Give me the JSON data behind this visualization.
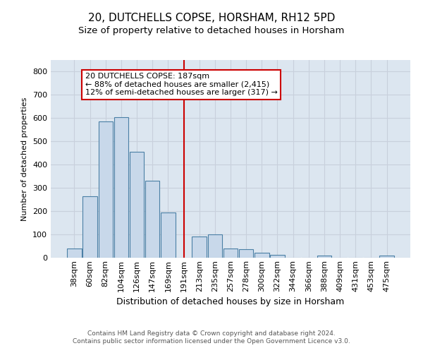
{
  "title": "20, DUTCHELLS COPSE, HORSHAM, RH12 5PD",
  "subtitle": "Size of property relative to detached houses in Horsham",
  "xlabel": "Distribution of detached houses by size in Horsham",
  "ylabel": "Number of detached properties",
  "footer_line1": "Contains HM Land Registry data © Crown copyright and database right 2024.",
  "footer_line2": "Contains public sector information licensed under the Open Government Licence v3.0.",
  "annotation_title": "20 DUTCHELLS COPSE: 187sqm",
  "annotation_line1": "← 88% of detached houses are smaller (2,415)",
  "annotation_line2": "12% of semi-detached houses are larger (317) →",
  "bar_labels": [
    "38sqm",
    "60sqm",
    "82sqm",
    "104sqm",
    "126sqm",
    "147sqm",
    "169sqm",
    "191sqm",
    "213sqm",
    "235sqm",
    "257sqm",
    "278sqm",
    "300sqm",
    "322sqm",
    "344sqm",
    "366sqm",
    "388sqm",
    "409sqm",
    "431sqm",
    "453sqm",
    "475sqm"
  ],
  "bar_heights": [
    38,
    265,
    585,
    605,
    455,
    330,
    195,
    0,
    90,
    100,
    38,
    35,
    20,
    12,
    0,
    0,
    10,
    0,
    0,
    0,
    10
  ],
  "bar_color": "#c8d8ea",
  "bar_edge_color": "#4a7fa5",
  "vline_color": "#cc0000",
  "vline_position": 7,
  "annotation_box_color": "#cc0000",
  "ylim": [
    0,
    850
  ],
  "yticks": [
    0,
    100,
    200,
    300,
    400,
    500,
    600,
    700,
    800
  ],
  "grid_color": "#c8d0dc",
  "bg_color": "#dce6f0",
  "title_fontsize": 11,
  "subtitle_fontsize": 9.5,
  "xlabel_fontsize": 9,
  "ylabel_fontsize": 8,
  "tick_fontsize": 8,
  "annotation_fontsize": 8,
  "footer_fontsize": 6.5
}
